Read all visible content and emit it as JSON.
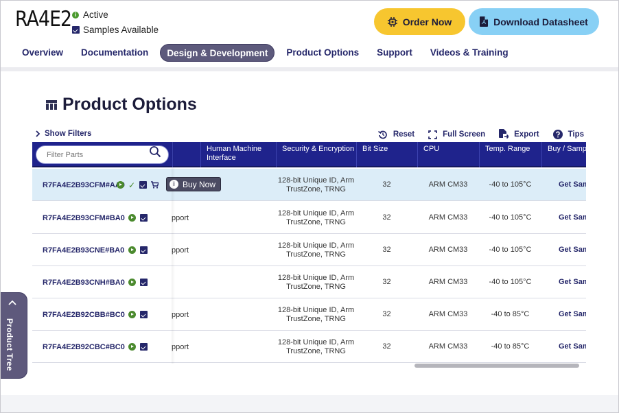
{
  "header": {
    "part_number": "RA4E2",
    "status_active": "Active",
    "status_samples": "Samples Available",
    "order_button": "Order Now",
    "datasheet_button": "Download Datasheet",
    "tabs": [
      {
        "label": "Overview",
        "active": false
      },
      {
        "label": "Documentation",
        "active": false
      },
      {
        "label": "Design & Development",
        "active": true
      },
      {
        "label": "Product Options",
        "active": false
      },
      {
        "label": "Support",
        "active": false
      },
      {
        "label": "Videos & Training",
        "active": false
      }
    ]
  },
  "product_options": {
    "title": "Product Options",
    "show_filters": "Show Filters",
    "tools": {
      "reset": "Reset",
      "full_screen": "Full Screen",
      "export": "Export",
      "tips": "Tips"
    },
    "filter_placeholder": "Filter Parts",
    "columns": [
      "Human Machine Interface",
      "Security & Encryption",
      "Bit Size",
      "CPU",
      "Temp. Range",
      "Buy / Sample"
    ],
    "buy_now_tooltip": "Buy Now",
    "rows": [
      {
        "part": "R7FA4E2B93CFM#AA0",
        "hmi": "",
        "security": "128-bit Unique ID, Arm TrustZone, TRNG",
        "bit_size": "32",
        "cpu": "ARM CM33",
        "temp": "-40 to 105°C",
        "buy": "Get Samples Buy / Qu"
      },
      {
        "part": "R7FA4E2B93CFM#BA0",
        "hmi": "pport",
        "security": "128-bit Unique ID, Arm TrustZone, TRNG",
        "bit_size": "32",
        "cpu": "ARM CM33",
        "temp": "-40 to 105°C",
        "buy": "Get Samples Buy / Qu"
      },
      {
        "part": "R7FA4E2B93CNE#BA0",
        "hmi": "pport",
        "security": "128-bit Unique ID, Arm TrustZone, TRNG",
        "bit_size": "32",
        "cpu": "ARM CM33",
        "temp": "-40 to 105°C",
        "buy": "Get Samples Buy / Qu"
      },
      {
        "part": "R7FA4E2B93CNH#BA0",
        "hmi": "",
        "security": "128-bit Unique ID, Arm TrustZone, TRNG",
        "bit_size": "32",
        "cpu": "ARM CM33",
        "temp": "-40 to 105°C",
        "buy": "Get Samples Buy / Qu"
      },
      {
        "part": "R7FA4E2B92CBB#BC0",
        "hmi": "pport",
        "security": "128-bit Unique ID, Arm TrustZone, TRNG",
        "bit_size": "32",
        "cpu": "ARM CM33",
        "temp": "-40 to 85°C",
        "buy": "Get Samples Buy / Qu"
      },
      {
        "part": "R7FA4E2B92CBC#BC0",
        "hmi": "pport",
        "security": "128-bit Unique ID, Arm TrustZone, TRNG",
        "bit_size": "32",
        "cpu": "ARM CM33",
        "temp": "-40 to 85°C",
        "buy": "Get Samples Buy / Qu"
      }
    ]
  },
  "side_tab": {
    "label": "Product Tree"
  },
  "colors": {
    "accent": "#1f238c",
    "order": "#f7c62f",
    "datasheet": "#88d0f5",
    "active_tab": "#5d5a7c",
    "status_green": "#4b9a2e"
  },
  "icons": [
    "status-active-icon",
    "calendar-check-icon",
    "chip-icon",
    "pdf-icon",
    "table-icon",
    "chevron-right-icon",
    "reset-icon",
    "fullscreen-icon",
    "export-icon",
    "help-icon",
    "search-icon",
    "play-icon",
    "check-icon",
    "cart-icon",
    "info-icon",
    "chevron-up-icon"
  ]
}
